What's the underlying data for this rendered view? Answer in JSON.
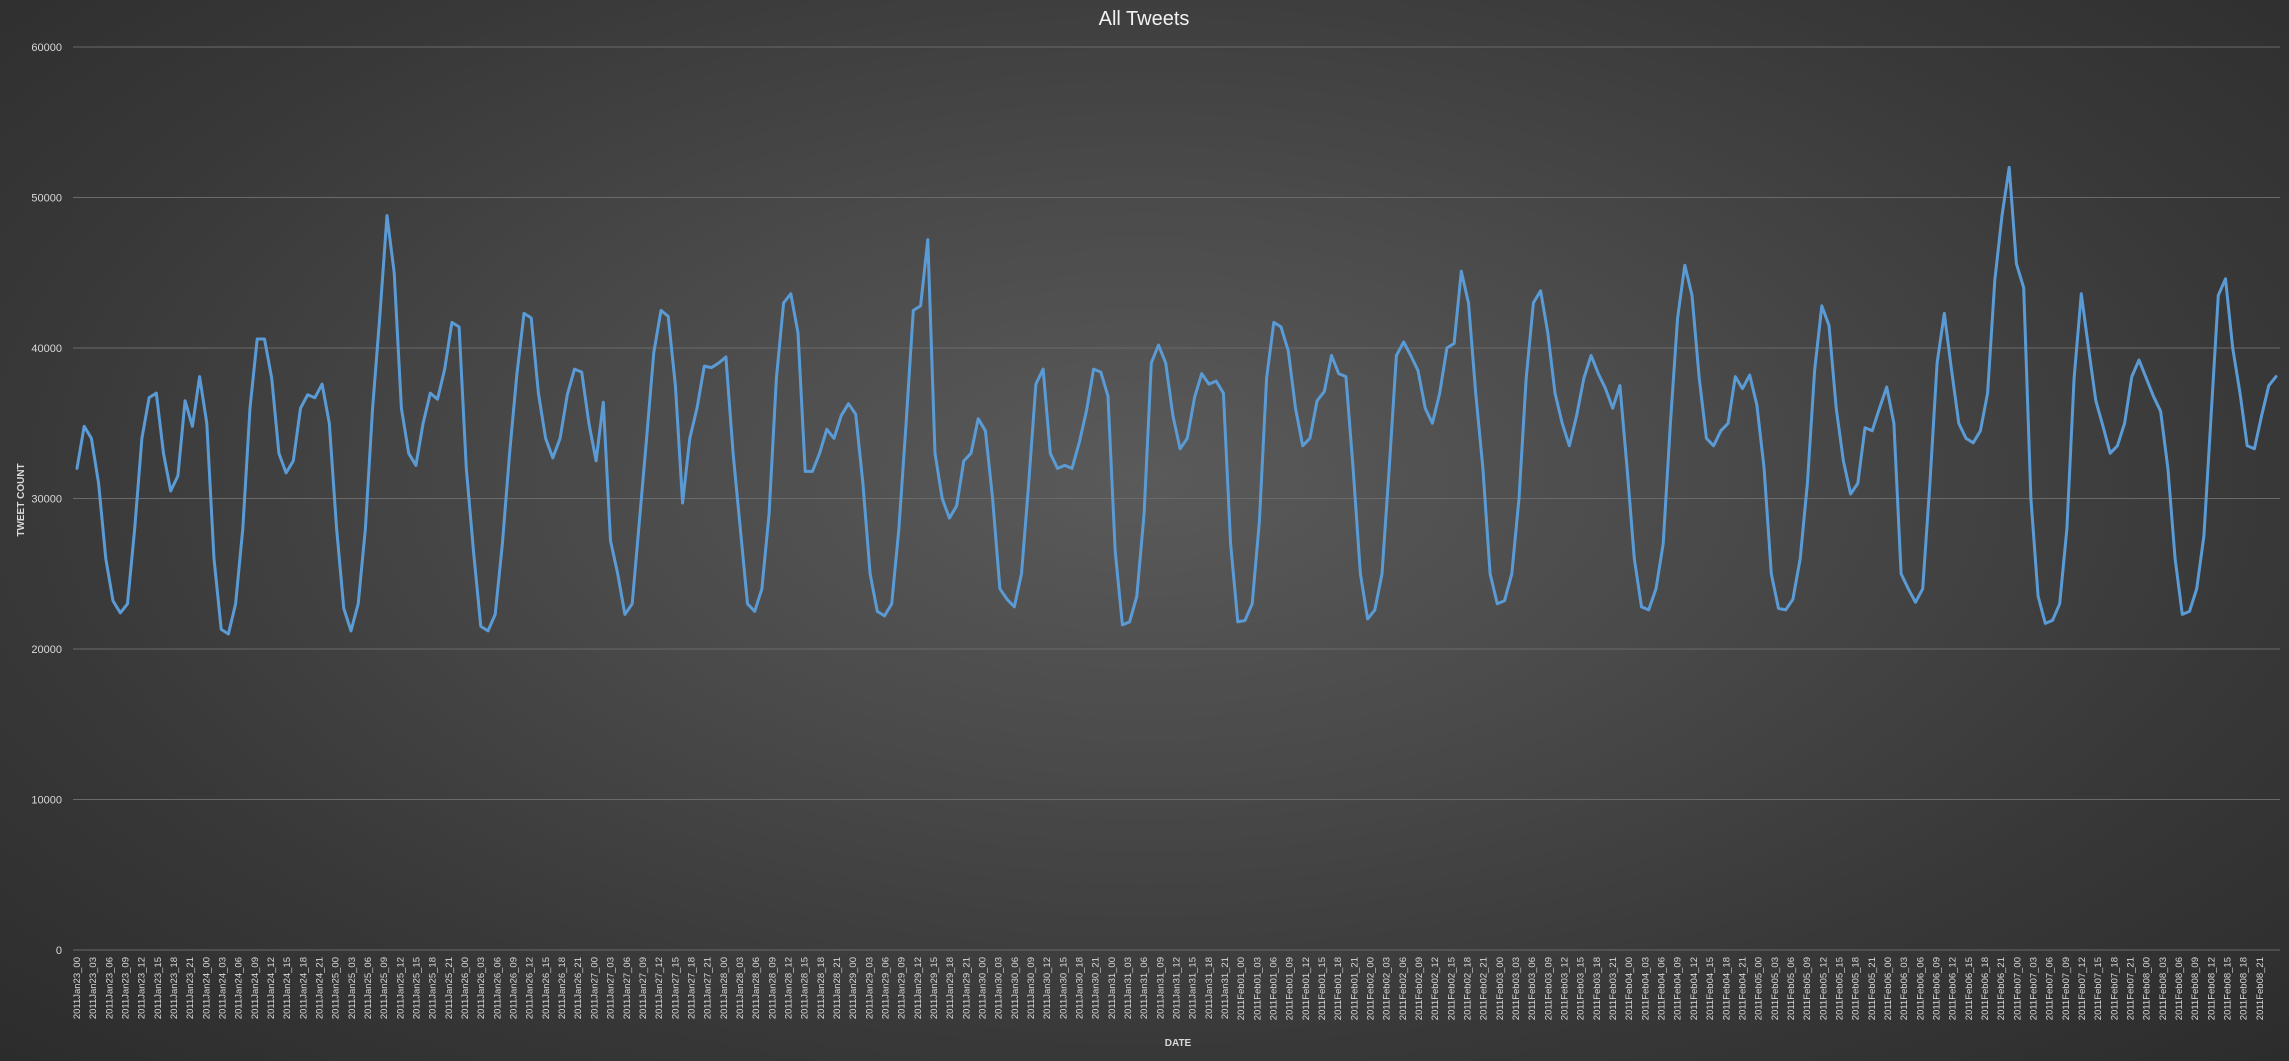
{
  "chart_data": {
    "type": "line",
    "title": "All Tweets",
    "xlabel": "DATE",
    "ylabel": "TWEET COUNT",
    "ylim": [
      0,
      60000
    ],
    "yticks": [
      0,
      10000,
      20000,
      30000,
      40000,
      50000,
      60000
    ],
    "grid": true,
    "legend": "none",
    "colors": {
      "series": "#5b9bd5"
    },
    "x_tick_labels": [
      "2011Jan23_00",
      "2011Jan23_03",
      "2011Jan23_06",
      "2011Jan23_09",
      "2011Jan23_12",
      "2011Jan23_15",
      "2011Jan23_18",
      "2011Jan23_21",
      "2011Jan24_00",
      "2011Jan24_03",
      "2011Jan24_06",
      "2011Jan24_09",
      "2011Jan24_12",
      "2011Jan24_15",
      "2011Jan24_18",
      "2011Jan24_21",
      "2011Jan25_00",
      "2011Jan25_03",
      "2011Jan25_06",
      "2011Jan25_09",
      "2011Jan25_12",
      "2011Jan25_15",
      "2011Jan25_18",
      "2011Jan25_21",
      "2011Jan26_00",
      "2011Jan26_03",
      "2011Jan26_06",
      "2011Jan26_09",
      "2011Jan26_12",
      "2011Jan26_15",
      "2011Jan26_18",
      "2011Jan26_21",
      "2011Jan27_00",
      "2011Jan27_03",
      "2011Jan27_06",
      "2011Jan27_09",
      "2011Jan27_12",
      "2011Jan27_15",
      "2011Jan27_18",
      "2011Jan27_21",
      "2011Jan28_00",
      "2011Jan28_03",
      "2011Jan28_06",
      "2011Jan28_09",
      "2011Jan28_12",
      "2011Jan28_15",
      "2011Jan28_18",
      "2011Jan28_21",
      "2011Jan29_00",
      "2011Jan29_03",
      "2011Jan29_06",
      "2011Jan29_09",
      "2011Jan29_12",
      "2011Jan29_15",
      "2011Jan29_18",
      "2011Jan29_21",
      "2011Jan30_00",
      "2011Jan30_03",
      "2011Jan30_06",
      "2011Jan30_09",
      "2011Jan30_12",
      "2011Jan30_15",
      "2011Jan30_18",
      "2011Jan30_21",
      "2011Jan31_00",
      "2011Jan31_03",
      "2011Jan31_06",
      "2011Jan31_09",
      "2011Jan31_12",
      "2011Jan31_15",
      "2011Jan31_18",
      "2011Jan31_21",
      "2011Feb01_00",
      "2011Feb01_03",
      "2011Feb01_06",
      "2011Feb01_09",
      "2011Feb01_12",
      "2011Feb01_15",
      "2011Feb01_18",
      "2011Feb01_21",
      "2011Feb02_00",
      "2011Feb02_03",
      "2011Feb02_06",
      "2011Feb02_09",
      "2011Feb02_12",
      "2011Feb02_15",
      "2011Feb02_18",
      "2011Feb02_21",
      "2011Feb03_00",
      "2011Feb03_03",
      "2011Feb03_06",
      "2011Feb03_09",
      "2011Feb03_12",
      "2011Feb03_15",
      "2011Feb03_18",
      "2011Feb03_21",
      "2011Feb04_00",
      "2011Feb04_03",
      "2011Feb04_06",
      "2011Feb04_09",
      "2011Feb04_12",
      "2011Feb04_15",
      "2011Feb04_18",
      "2011Feb04_21",
      "2011Feb05_00",
      "2011Feb05_03",
      "2011Feb05_06",
      "2011Feb05_09",
      "2011Feb05_12",
      "2011Feb05_15",
      "2011Feb05_18",
      "2011Feb05_21",
      "2011Feb06_00",
      "2011Feb06_03",
      "2011Feb06_06",
      "2011Feb06_09",
      "2011Feb06_12",
      "2011Feb06_15",
      "2011Feb06_18",
      "2011Feb06_21",
      "2011Feb07_00",
      "2011Feb07_03",
      "2011Feb07_06",
      "2011Feb07_09",
      "2011Feb07_12",
      "2011Feb07_15",
      "2011Feb07_18",
      "2011Feb07_21",
      "2011Feb08_00",
      "2011Feb08_03",
      "2011Feb08_06",
      "2011Feb08_09",
      "2011Feb08_12",
      "2011Feb08_15",
      "2011Feb08_18",
      "2011Feb08_21"
    ],
    "series": [
      {
        "values": [
          32000,
          34800,
          34000,
          31000,
          26000,
          23200,
          22400,
          23000,
          28000,
          34000,
          36700,
          37000,
          33000,
          30500,
          31500,
          36500,
          34800,
          38100,
          35000,
          26000,
          21300,
          21000,
          23000,
          28000,
          36000,
          40600,
          40600,
          38000,
          33000,
          31700,
          32500,
          36000,
          36900,
          36700,
          37600,
          35000,
          28000,
          22700,
          21200,
          23000,
          28000,
          36000,
          42100,
          48800,
          45000,
          36000,
          33000,
          32200,
          35000,
          37000,
          36600,
          38600,
          41700,
          41400,
          32000,
          26500,
          21500,
          21200,
          22300,
          27000,
          33000,
          38200,
          42300,
          42000,
          37000,
          34000,
          32700,
          34000,
          36900,
          38600,
          38400,
          35000,
          32500,
          36400,
          27200,
          25000,
          22300,
          23000,
          28500,
          34000,
          39700,
          42500,
          42100,
          37500,
          29700,
          34000,
          36000,
          38800,
          38700,
          39000,
          39400,
          33000,
          28000,
          23000,
          22500,
          24000,
          29000,
          38000,
          43000,
          43600,
          41000,
          31800,
          31800,
          33000,
          34600,
          34000,
          35500,
          36300,
          35600,
          31000,
          25000,
          22500,
          22200,
          23000,
          28000,
          35000,
          42500,
          42800,
          47200,
          33000,
          30000,
          28700,
          29500,
          32500,
          33000,
          35300,
          34500,
          30000,
          24000,
          23300,
          22800,
          25000,
          31000,
          37600,
          38600,
          33000,
          32000,
          32200,
          32000,
          33700,
          35800,
          38600,
          38400,
          36800,
          26500,
          21600,
          21800,
          23500,
          29000,
          39000,
          40200,
          39000,
          35500,
          33300,
          34000,
          36700,
          38300,
          37600,
          37800,
          37000,
          27000,
          21800,
          21900,
          23000,
          28500,
          38000,
          41700,
          41400,
          39800,
          36000,
          33500,
          34000,
          36500,
          37100,
          39500,
          38300,
          38100,
          32000,
          25000,
          22000,
          22600,
          25000,
          32000,
          39500,
          40400,
          39500,
          38500,
          36000,
          35000,
          37000,
          40000,
          40300,
          45100,
          43000,
          37000,
          32000,
          25000,
          23000,
          23200,
          25000,
          30000,
          38000,
          43000,
          43800,
          41000,
          37000,
          35000,
          33500,
          35500,
          38000,
          39500,
          38300,
          37300,
          36000,
          37500,
          32000,
          26000,
          22800,
          22600,
          24000,
          27000,
          35000,
          42000,
          45500,
          43500,
          38000,
          34000,
          33500,
          34500,
          35000,
          38100,
          37300,
          38200,
          36200,
          32000,
          25000,
          22700,
          22600,
          23300,
          26000,
          31000,
          38500,
          42800,
          41500,
          36000,
          32500,
          30300,
          31000,
          34700,
          34500,
          36000,
          37400,
          35000,
          25000,
          24000,
          23100,
          24000,
          31000,
          39000,
          42300,
          38500,
          35000,
          34000,
          33700,
          34500,
          37000,
          44500,
          48800,
          52000,
          45600,
          44000,
          30000,
          23500,
          21700,
          21900,
          23000,
          28000,
          38000,
          43600,
          40000,
          36500,
          34800,
          33000,
          33500,
          35000,
          38100,
          39200,
          38000,
          36800,
          35800,
          32000,
          26000,
          22300,
          22500,
          24000,
          27500,
          35500,
          43500,
          44600,
          40000,
          37000,
          33500,
          33300,
          35500,
          37500,
          38100
        ]
      }
    ]
  }
}
